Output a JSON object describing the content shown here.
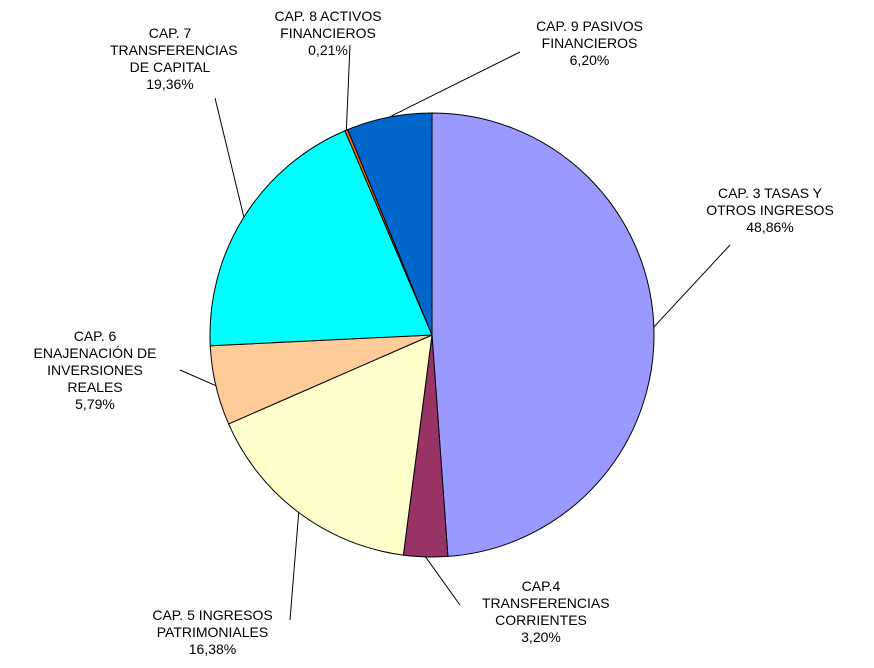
{
  "chart_data": {
    "type": "pie",
    "categories": [
      "CAP. 3 TASAS Y OTROS INGRESOS",
      "CAP.4 TRANSFERENCIAS CORRIENTES",
      "CAP. 5 INGRESOS PATRIMONIALES",
      "CAP. 6 ENAJENACIÓN DE INVERSIONES REALES",
      "CAP. 7 TRANSFERENCIAS DE CAPITAL",
      "CAP. 8 ACTIVOS FINANCIEROS",
      "CAP. 9 PASIVOS FINANCIEROS"
    ],
    "values": [
      48.86,
      3.2,
      16.38,
      5.79,
      19.36,
      0.21,
      6.2
    ],
    "value_labels": [
      "48,86%",
      "3,20%",
      "16,38%",
      "5,79%",
      "19,36%",
      "0,21%",
      "6,20%"
    ],
    "colors": [
      "#9999ff",
      "#993366",
      "#ffffcc",
      "#ffcc99",
      "#00ffff",
      "#ff6600",
      "#0066cc"
    ]
  }
}
